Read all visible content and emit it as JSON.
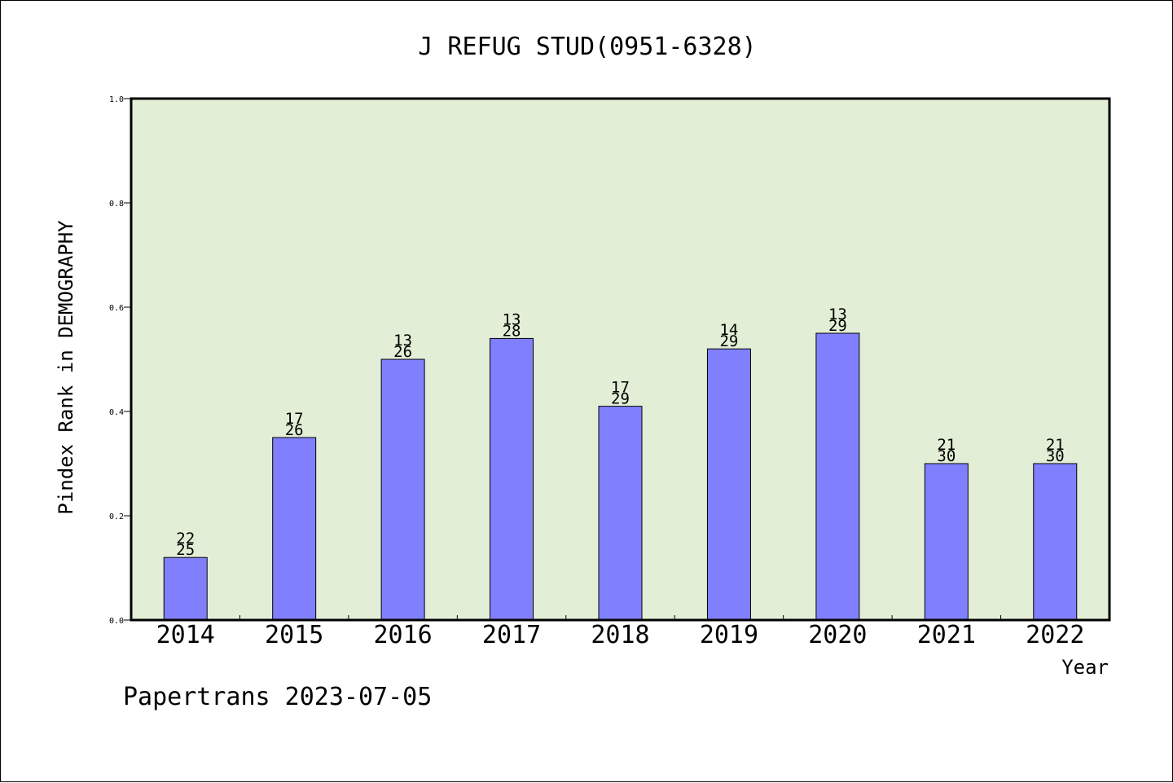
{
  "chart_data": {
    "type": "bar",
    "title": "J REFUG STUD(0951-6328)",
    "ylabel": "Pindex Rank in DEMOGRAPHY",
    "xlabel": "Year",
    "categories": [
      "2014",
      "2015",
      "2016",
      "2017",
      "2018",
      "2019",
      "2020",
      "2021",
      "2022"
    ],
    "values": [
      0.12,
      0.35,
      0.5,
      0.54,
      0.41,
      0.52,
      0.55,
      0.3,
      0.3
    ],
    "labels_top": [
      "22",
      "17",
      "13",
      "13",
      "17",
      "14",
      "13",
      "21",
      "21"
    ],
    "labels_bottom": [
      "25",
      "26",
      "26",
      "28",
      "29",
      "29",
      "29",
      "30",
      "30"
    ],
    "ylim": [
      0,
      1.0
    ],
    "yticks": [
      "0.0",
      "0.2",
      "0.4",
      "0.6",
      "0.8",
      "1.0"
    ],
    "grid": false,
    "colors": {
      "bar": "#8080ff",
      "plot_bg": "#e2efd6",
      "page_bg": "#ffffff"
    }
  },
  "footer": "Papertrans 2023-07-05"
}
